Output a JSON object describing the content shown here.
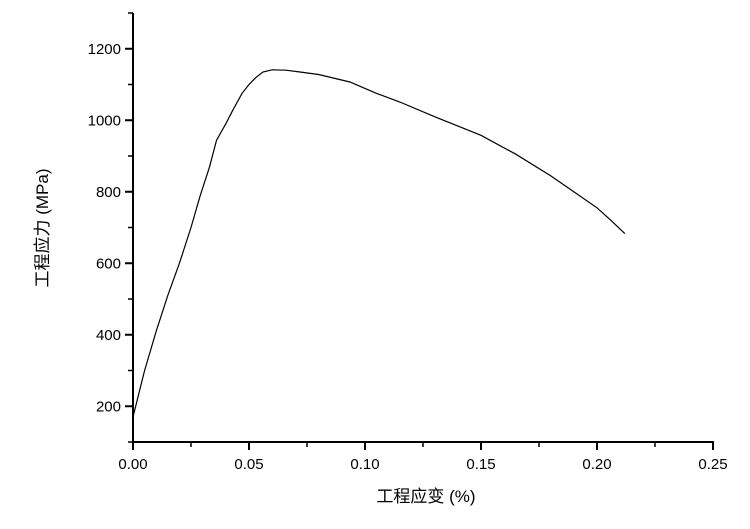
{
  "chart_data": {
    "type": "line",
    "title": "",
    "xlabel": "工程应变 (%)",
    "ylabel": "工程应力 (MPa)",
    "xlim": [
      0,
      0.25
    ],
    "ylim": [
      100,
      1300
    ],
    "xticks": [
      0.0,
      0.05,
      0.1,
      0.15,
      0.2,
      0.25
    ],
    "xtick_labels": [
      "0.00",
      "0.05",
      "0.10",
      "0.15",
      "0.20",
      "0.25"
    ],
    "yticks": [
      200,
      400,
      600,
      800,
      1000,
      1200
    ],
    "ytick_labels": [
      "200",
      "400",
      "600",
      "800",
      "1000",
      "1200"
    ],
    "grid": false,
    "line_color": "#000000",
    "series": [
      {
        "x": [
          0,
          0.005,
          0.01,
          0.015,
          0.02,
          0.025,
          0.029,
          0.033,
          0.036,
          0.04,
          0.043,
          0.047,
          0.05,
          0.053,
          0.056,
          0.06,
          0.066,
          0.072,
          0.08,
          0.0935,
          0.105,
          0.115,
          0.13,
          0.15,
          0.165,
          0.18,
          0.19,
          0.2,
          0.206,
          0.212
        ],
        "y": [
          170,
          300,
          410,
          510,
          600,
          700,
          790,
          870,
          944,
          990,
          1028,
          1075,
          1100,
          1120,
          1135,
          1141,
          1140,
          1135,
          1128,
          1107,
          1075,
          1051,
          1010,
          958,
          905,
          845,
          800,
          755,
          720,
          683
        ]
      }
    ]
  }
}
